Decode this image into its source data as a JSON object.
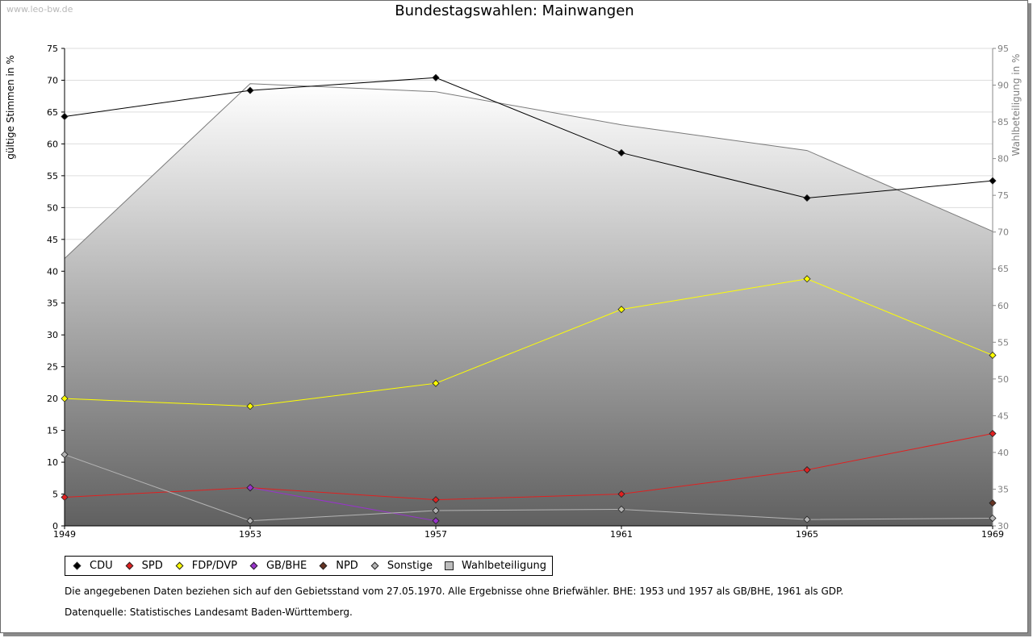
{
  "watermark": "www.leo-bw.de",
  "chart_data": {
    "type": "line",
    "title": "Bundestagswahlen: Mainwangen",
    "categories": [
      "1949",
      "1953",
      "1957",
      "1961",
      "1965",
      "1969"
    ],
    "ylabel": "gültige Stimmen in %",
    "y2label": "Wahlbeteiligung in %",
    "ylim": [
      0,
      75
    ],
    "y2lim": [
      30,
      95
    ],
    "yticks": [
      0,
      5,
      10,
      15,
      20,
      25,
      30,
      35,
      40,
      45,
      50,
      55,
      60,
      65,
      70,
      75
    ],
    "y2ticks": [
      30,
      35,
      40,
      45,
      50,
      55,
      60,
      65,
      70,
      75,
      80,
      85,
      90,
      95
    ],
    "grid": true,
    "legend_position": "bottom",
    "series": [
      {
        "name": "CDU",
        "color": "#000000",
        "values": [
          64.3,
          68.4,
          70.4,
          58.6,
          51.5,
          54.2
        ]
      },
      {
        "name": "SPD",
        "color": "#e02020",
        "values": [
          4.5,
          6.0,
          4.1,
          5.0,
          8.8,
          14.5
        ]
      },
      {
        "name": "FDP/DVP",
        "color": "#ffff00",
        "values": [
          20.0,
          18.8,
          22.4,
          34.0,
          38.8,
          26.8
        ]
      },
      {
        "name": "GB/BHE",
        "color": "#9933cc",
        "values": [
          null,
          6.0,
          0.8,
          null,
          null,
          null
        ]
      },
      {
        "name": "NPD",
        "color": "#663322",
        "values": [
          null,
          null,
          null,
          null,
          null,
          3.6
        ]
      },
      {
        "name": "Sonstige",
        "color": "#b4b4b4",
        "values": [
          11.2,
          0.8,
          2.4,
          2.6,
          1.0,
          1.2
        ]
      }
    ],
    "turnout": {
      "name": "Wahlbeteiligung",
      "color": "#bdbdbd",
      "axis": "right",
      "values": [
        66.4,
        90.2,
        89.1,
        84.6,
        81.1,
        70.1
      ]
    }
  },
  "notes": {
    "line1": "Die angegebenen Daten beziehen sich auf den Gebietsstand vom 27.05.1970. Alle Ergebnisse ohne Briefwähler. BHE: 1953 und 1957 als GB/BHE, 1961 als GDP.",
    "line2": "Datenquelle: Statistisches Landesamt Baden-Württemberg."
  }
}
